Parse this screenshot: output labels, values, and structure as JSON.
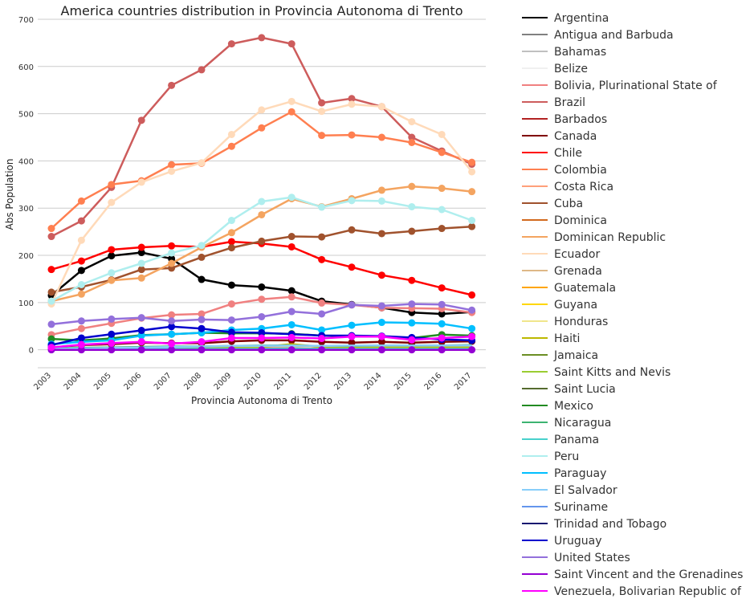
{
  "chart_data": {
    "type": "line",
    "title": "America countries distribution in Provincia Autonoma di Trento",
    "xlabel": "Provincia Autonoma di Trento",
    "ylabel": "Abs Population",
    "x": [
      "2003",
      "2004",
      "2005",
      "2006",
      "2007",
      "2008",
      "2009",
      "2010",
      "2011",
      "2012",
      "2013",
      "2014",
      "2015",
      "2016",
      "2017"
    ],
    "yticks": [
      0,
      100,
      200,
      300,
      400,
      500,
      600,
      700
    ],
    "ylim": [
      -38,
      700
    ],
    "grid": "horizontal",
    "legend_position": "outside-right",
    "series": [
      {
        "name": "Argentina",
        "color": "#000000",
        "marker": true,
        "values": [
          115,
          168,
          199,
          206,
          193,
          149,
          137,
          133,
          125,
          103,
          96,
          89,
          79,
          76,
          80
        ]
      },
      {
        "name": "Antigua and Barbuda",
        "color": "#808080",
        "marker": false,
        "values": [
          0,
          0,
          0,
          0,
          0,
          0,
          0,
          0,
          0,
          0,
          0,
          0,
          0,
          0,
          0
        ]
      },
      {
        "name": "Bahamas",
        "color": "#c0c0c0",
        "marker": false,
        "values": [
          0,
          0,
          0,
          0,
          0,
          0,
          0,
          0,
          0,
          0,
          0,
          0,
          0,
          0,
          0
        ]
      },
      {
        "name": "Belize",
        "color": "#f0f0f0",
        "marker": false,
        "values": [
          0,
          0,
          0,
          0,
          0,
          0,
          0,
          0,
          0,
          0,
          0,
          0,
          0,
          0,
          0
        ]
      },
      {
        "name": "Bolivia, Plurinational State of",
        "color": "#f08080",
        "marker": true,
        "values": [
          32,
          45,
          56,
          67,
          74,
          76,
          97,
          107,
          112,
          99,
          95,
          89,
          88,
          87,
          79
        ]
      },
      {
        "name": "Brazil",
        "color": "#cd5c5c",
        "marker": true,
        "values": [
          240,
          273,
          344,
          486,
          560,
          593,
          648,
          661,
          648,
          523,
          532,
          515,
          450,
          421,
          393
        ]
      },
      {
        "name": "Barbados",
        "color": "#b22222",
        "marker": false,
        "values": [
          0,
          0,
          0,
          0,
          0,
          0,
          0,
          0,
          0,
          0,
          0,
          0,
          0,
          0,
          0
        ]
      },
      {
        "name": "Canada",
        "color": "#800000",
        "marker": true,
        "values": [
          5,
          10,
          12,
          15,
          14,
          14,
          18,
          20,
          20,
          17,
          15,
          17,
          15,
          17,
          18
        ]
      },
      {
        "name": "Chile",
        "color": "#ff0000",
        "marker": true,
        "values": [
          170,
          188,
          212,
          217,
          220,
          218,
          229,
          225,
          218,
          191,
          175,
          158,
          147,
          131,
          116
        ]
      },
      {
        "name": "Colombia",
        "color": "#ff7f50",
        "marker": true,
        "values": [
          257,
          315,
          350,
          358,
          392,
          395,
          431,
          470,
          504,
          454,
          455,
          450,
          439,
          418,
          397
        ]
      },
      {
        "name": "Costa Rica",
        "color": "#ffa07a",
        "marker": false,
        "values": [
          2,
          2,
          3,
          3,
          3,
          3,
          4,
          4,
          4,
          3,
          3,
          3,
          3,
          3,
          3
        ]
      },
      {
        "name": "Cuba",
        "color": "#a0522d",
        "marker": true,
        "values": [
          122,
          133,
          148,
          170,
          173,
          196,
          216,
          230,
          240,
          239,
          254,
          246,
          251,
          257,
          261
        ]
      },
      {
        "name": "Dominica",
        "color": "#d2691e",
        "marker": false,
        "values": [
          1,
          1,
          1,
          1,
          1,
          1,
          1,
          1,
          1,
          1,
          1,
          1,
          1,
          1,
          1
        ]
      },
      {
        "name": "Dominican Republic",
        "color": "#f4a460",
        "marker": true,
        "values": [
          103,
          118,
          147,
          152,
          183,
          217,
          248,
          286,
          320,
          303,
          320,
          338,
          346,
          342,
          335
        ]
      },
      {
        "name": "Ecuador",
        "color": "#ffdab9",
        "marker": true,
        "values": [
          97,
          232,
          312,
          355,
          378,
          396,
          456,
          508,
          526,
          505,
          520,
          515,
          483,
          456,
          377
        ]
      },
      {
        "name": "Grenada",
        "color": "#deb887",
        "marker": false,
        "values": [
          0,
          0,
          0,
          0,
          0,
          0,
          0,
          0,
          0,
          0,
          0,
          0,
          0,
          0,
          0
        ]
      },
      {
        "name": "Guatemala",
        "color": "#ffa500",
        "marker": false,
        "values": [
          1,
          1,
          1,
          1,
          1,
          1,
          1,
          1,
          1,
          1,
          1,
          1,
          1,
          1,
          1
        ]
      },
      {
        "name": "Guyana",
        "color": "#ffd700",
        "marker": false,
        "values": [
          0,
          0,
          0,
          0,
          0,
          0,
          0,
          0,
          0,
          0,
          0,
          0,
          0,
          0,
          0
        ]
      },
      {
        "name": "Honduras",
        "color": "#f0e68c",
        "marker": false,
        "values": [
          3,
          4,
          5,
          6,
          7,
          7,
          8,
          8,
          9,
          8,
          8,
          8,
          8,
          8,
          8
        ]
      },
      {
        "name": "Haiti",
        "color": "#bdb800",
        "marker": false,
        "values": [
          2,
          2,
          3,
          3,
          4,
          4,
          5,
          6,
          12,
          6,
          6,
          6,
          6,
          6,
          6
        ]
      },
      {
        "name": "Jamaica",
        "color": "#6b8e23",
        "marker": false,
        "values": [
          0,
          0,
          0,
          0,
          0,
          0,
          0,
          0,
          0,
          0,
          0,
          0,
          0,
          0,
          0
        ]
      },
      {
        "name": "Saint Kitts and Nevis",
        "color": "#9acd32",
        "marker": false,
        "values": [
          0,
          0,
          0,
          0,
          0,
          0,
          0,
          0,
          0,
          0,
          0,
          0,
          0,
          0,
          0
        ]
      },
      {
        "name": "Saint Lucia",
        "color": "#556b2f",
        "marker": false,
        "values": [
          0,
          0,
          0,
          0,
          0,
          0,
          0,
          0,
          0,
          0,
          0,
          0,
          0,
          0,
          0
        ]
      },
      {
        "name": "Mexico",
        "color": "#228b22",
        "marker": true,
        "values": [
          23,
          20,
          24,
          31,
          33,
          36,
          35,
          35,
          34,
          30,
          29,
          28,
          25,
          32,
          30
        ]
      },
      {
        "name": "Nicaragua",
        "color": "#3cb371",
        "marker": false,
        "values": [
          3,
          4,
          5,
          6,
          7,
          7,
          8,
          9,
          9,
          8,
          8,
          9,
          9,
          9,
          10
        ]
      },
      {
        "name": "Panama",
        "color": "#48d1cc",
        "marker": false,
        "values": [
          1,
          1,
          1,
          2,
          2,
          2,
          2,
          2,
          3,
          2,
          2,
          2,
          2,
          2,
          2
        ]
      },
      {
        "name": "Peru",
        "color": "#afeeee",
        "marker": true,
        "values": [
          103,
          138,
          163,
          183,
          205,
          221,
          274,
          314,
          323,
          302,
          316,
          315,
          303,
          297,
          274
        ]
      },
      {
        "name": "Paraguay",
        "color": "#00bfff",
        "marker": true,
        "values": [
          12,
          17,
          20,
          30,
          33,
          36,
          42,
          45,
          53,
          42,
          52,
          58,
          57,
          55,
          45
        ]
      },
      {
        "name": "El Salvador",
        "color": "#87cefa",
        "marker": false,
        "values": [
          2,
          3,
          4,
          5,
          6,
          7,
          8,
          8,
          9,
          8,
          9,
          9,
          9,
          9,
          9
        ]
      },
      {
        "name": "Suriname",
        "color": "#6495ed",
        "marker": false,
        "values": [
          0,
          0,
          0,
          0,
          0,
          0,
          0,
          0,
          0,
          0,
          0,
          0,
          0,
          0,
          0
        ]
      },
      {
        "name": "Trinidad and Tobago",
        "color": "#191970",
        "marker": false,
        "values": [
          0,
          0,
          0,
          0,
          0,
          0,
          0,
          0,
          0,
          0,
          0,
          0,
          0,
          0,
          0
        ]
      },
      {
        "name": "Uruguay",
        "color": "#0000cd",
        "marker": true,
        "values": [
          10,
          25,
          33,
          41,
          49,
          45,
          37,
          36,
          33,
          30,
          30,
          29,
          26,
          22,
          20
        ]
      },
      {
        "name": "United States",
        "color": "#9370db",
        "marker": true,
        "values": [
          54,
          61,
          65,
          68,
          61,
          64,
          63,
          70,
          81,
          76,
          95,
          93,
          97,
          96,
          84
        ]
      },
      {
        "name": "Saint Vincent and the Grenadines",
        "color": "#9400d3",
        "marker": true,
        "values": [
          0,
          0,
          0,
          0,
          0,
          0,
          0,
          0,
          0,
          0,
          0,
          0,
          0,
          0,
          0
        ]
      },
      {
        "name": "Venezuela, Bolivarian Republic of",
        "color": "#ff00ff",
        "marker": true,
        "values": [
          5,
          11,
          14,
          17,
          13,
          17,
          25,
          25,
          26,
          24,
          28,
          28,
          21,
          25,
          28
        ]
      }
    ]
  }
}
